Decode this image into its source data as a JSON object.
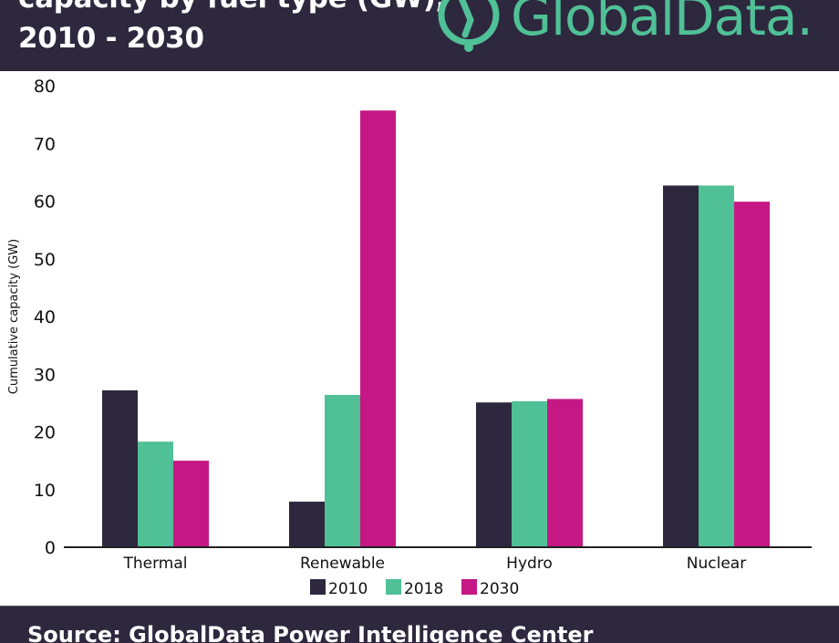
{
  "header": {
    "title_line1": "capacity by fuel type (GW),",
    "title_line2": "2010 - 2030",
    "logo_text": "GlobalData."
  },
  "footer": {
    "source_text": "Source: GlobalData Power Intelligence Center"
  },
  "colors": {
    "header_bg": "#2d283e",
    "brand_green": "#50c096",
    "series_2010": "#2d283e",
    "series_2018": "#50c096",
    "series_2030": "#c51884"
  },
  "chart_data": {
    "type": "bar",
    "title": "capacity by fuel type (GW), 2010 - 2030",
    "xlabel": "",
    "ylabel": "Cumulative capacity (GW)",
    "ylim": [
      0,
      80
    ],
    "yticks": [
      0,
      10,
      20,
      30,
      40,
      50,
      60,
      70,
      80
    ],
    "grid": false,
    "legend_position": "bottom-center",
    "categories": [
      "Thermal",
      "Renewable",
      "Hydro",
      "Nuclear"
    ],
    "series": [
      {
        "name": "2010",
        "color": "#2d283e",
        "values": [
          27.2,
          7.9,
          25.1,
          62.7
        ]
      },
      {
        "name": "2018",
        "color": "#50c096",
        "values": [
          18.3,
          26.4,
          25.3,
          62.7
        ]
      },
      {
        "name": "2030",
        "color": "#c51884",
        "values": [
          15.0,
          75.7,
          25.7,
          59.9
        ]
      }
    ]
  }
}
